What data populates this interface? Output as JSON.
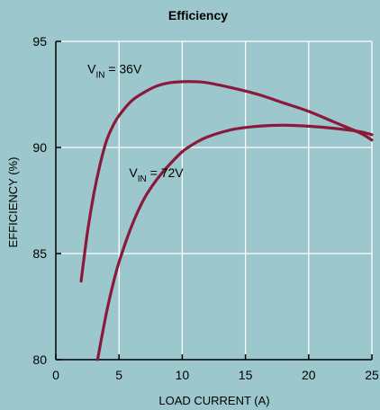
{
  "chart_data": {
    "type": "line",
    "title": "Efficiency",
    "xlabel": "LOAD CURRENT (A)",
    "ylabel": "EFFICIENCY (%)",
    "xlim": [
      0,
      25
    ],
    "ylim": [
      80,
      95
    ],
    "xticks": [
      0,
      5,
      10,
      15,
      20,
      25
    ],
    "yticks": [
      80,
      85,
      90,
      95
    ],
    "grid": true,
    "colors": {
      "background": "#9cc7cc",
      "grid": "#ffffff",
      "line": "#8b1a3a",
      "axis": "#000000"
    },
    "series": [
      {
        "name": "V_IN = 36V",
        "label_main": "V",
        "label_sub": "IN",
        "label_rest": " = 36V",
        "x": [
          2,
          2.5,
          3,
          3.5,
          4,
          4.5,
          5,
          6,
          7,
          8,
          9,
          10,
          11,
          12,
          14,
          16,
          18,
          20,
          22,
          24,
          25
        ],
        "y": [
          83.7,
          86.0,
          87.8,
          89.2,
          90.3,
          91.0,
          91.5,
          92.2,
          92.6,
          92.9,
          93.05,
          93.1,
          93.1,
          93.05,
          92.8,
          92.5,
          92.1,
          91.7,
          91.2,
          90.7,
          90.35
        ]
      },
      {
        "name": "V_IN = 72V",
        "label_main": "V",
        "label_sub": "IN",
        "label_rest": " = 72V",
        "x": [
          3.3,
          4,
          4.5,
          5,
          6,
          7,
          8,
          9,
          10,
          11,
          12,
          14,
          16,
          18,
          20,
          22,
          24,
          25
        ],
        "y": [
          80.0,
          82.2,
          83.5,
          84.6,
          86.3,
          87.6,
          88.5,
          89.2,
          89.8,
          90.2,
          90.5,
          90.85,
          91.0,
          91.05,
          91.0,
          90.9,
          90.75,
          90.6
        ]
      }
    ]
  }
}
